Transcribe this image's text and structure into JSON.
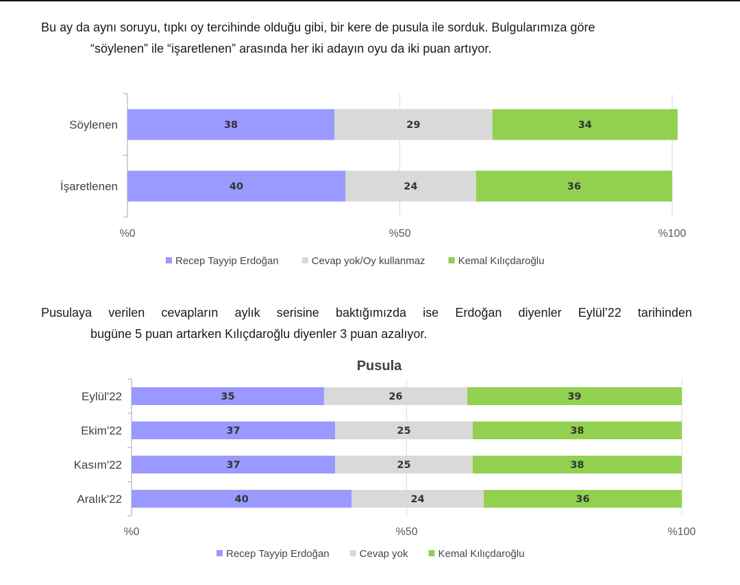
{
  "paragraphs": {
    "p1_line1": "Bu ay da aynı soruyu, tıpkı oy tercihinde olduğu gibi, bir kere de pusula ile sorduk. Bulgularımıza göre",
    "p1_line2": "“söylenen” ile “işaretlenen” arasında her iki adayın oyu da iki puan artıyor.",
    "p2_line1": "Pusulaya verilen cevapların aylık serisine baktığımızda ise Erdoğan diyenler Eylül’22 tarihinden",
    "p2_line2": "bugüne 5 puan artarken Kılıçdaroğlu diyenler 3 puan azalıyor."
  },
  "chart_data": [
    {
      "type": "bar",
      "stacked": true,
      "orientation": "horizontal",
      "title": "",
      "categories": [
        "Söylenen",
        "İşaretlenen"
      ],
      "series": [
        {
          "name": "Recep Tayyip Erdoğan",
          "values": [
            38,
            40
          ],
          "color": "#9999ff"
        },
        {
          "name": "Cevap yok/Oy kullanmaz",
          "values": [
            29,
            24
          ],
          "color": "#d9d9d9"
        },
        {
          "name": "Kemal Kılıçdaroğlu",
          "values": [
            34,
            36
          ],
          "color": "#92d050"
        }
      ],
      "xlim": [
        0,
        100
      ],
      "x_ticks": [
        "%0",
        "%50",
        "%100"
      ],
      "grid": true,
      "legend": "bottom"
    },
    {
      "type": "bar",
      "stacked": true,
      "orientation": "horizontal",
      "title": "Pusula",
      "categories": [
        "Eylül'22",
        "Ekim'22",
        "Kasım'22",
        "Aralık'22"
      ],
      "series": [
        {
          "name": "Recep Tayyip Erdoğan",
          "values": [
            35,
            37,
            37,
            40
          ],
          "color": "#9999ff"
        },
        {
          "name": "Cevap yok",
          "values": [
            26,
            25,
            25,
            24
          ],
          "color": "#d9d9d9"
        },
        {
          "name": "Kemal Kılıçdaroğlu",
          "values": [
            39,
            38,
            38,
            36
          ],
          "color": "#92d050"
        }
      ],
      "xlim": [
        0,
        100
      ],
      "x_ticks": [
        "%0",
        "%50",
        "%100"
      ],
      "grid": true,
      "legend": "bottom"
    }
  ]
}
